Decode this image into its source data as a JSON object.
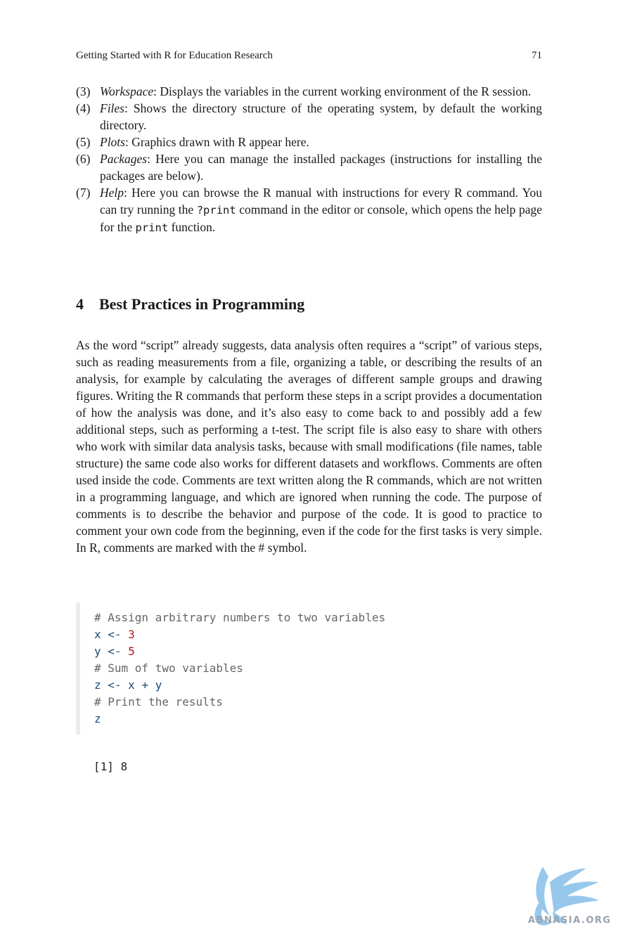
{
  "running_head": {
    "title": "Getting Started with R for Education Research",
    "page_number": "71"
  },
  "list": {
    "items": [
      {
        "num": "(3)",
        "term": "Workspace",
        "text": ": Displays the variables in the current working environment of the R session."
      },
      {
        "num": "(4)",
        "term": "Files",
        "text": ": Shows the directory structure of the operating system, by default the working directory."
      },
      {
        "num": "(5)",
        "term": "Plots",
        "text": ": Graphics drawn with R appear here."
      },
      {
        "num": "(6)",
        "term": "Packages",
        "text": ": Here you can manage the installed packages (instructions for installing the packages are below)."
      }
    ],
    "help": {
      "num": "(7)",
      "term": "Help",
      "text_1": ": Here you can browse the R manual with instructions for every R command. You can try running the ",
      "code_1": "?print",
      "text_2": " command in the editor or console, which opens the help page for the ",
      "code_2": "print",
      "text_3": " function."
    }
  },
  "section": {
    "number": "4",
    "title": "Best Practices in Programming"
  },
  "paragraph": "As the word “script” already suggests, data analysis often requires a “script” of various steps, such as reading measurements from a file, organizing a table, or describing the results of an analysis, for example by calculating the averages of different sample groups and drawing figures. Writing the R commands that perform these steps in a script provides a documentation of how the analysis was done, and it’s also easy to come back to and possibly add a few additional steps, such as performing a t-test. The script file is also easy to share with others who work with similar data analysis tasks, because with small modifications (file names, table structure) the same code also works for different datasets and workflows. Comments are often used inside the code. Comments are text written along the R commands, which are not written in a programming language, and which are ignored when running the code. The purpose of comments is to describe the behavior and purpose of the code. It is good to practice to comment your own code from the beginning, even if the code for the first tasks is very simple. In R, comments are marked with the # symbol.",
  "code": {
    "comment_1": "# Assign arbitrary numbers to two variables",
    "line_x": {
      "var": "x",
      "op": " <- ",
      "num": "3"
    },
    "line_y": {
      "var": "y",
      "op": " <- ",
      "num": "5"
    },
    "comment_2": "# Sum of two variables",
    "line_z": {
      "var": "z",
      "op": " <- ",
      "expr": "x + y"
    },
    "comment_3": "# Print the results",
    "line_print": "z"
  },
  "output": "[1] 8",
  "watermark": {
    "text": "ABNASIA.ORG",
    "accent": "#8cc3ea"
  }
}
